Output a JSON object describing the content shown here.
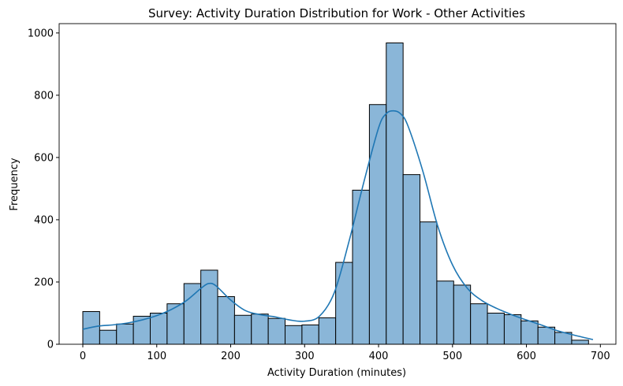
{
  "chart_data": {
    "type": "bar",
    "subtype": "histogram",
    "title": "Survey: Activity Duration Distribution for Work - Other Activities",
    "xlabel": "Activity Duration (minutes)",
    "ylabel": "Frequency",
    "xlim": [
      -32,
      721
    ],
    "ylim": [
      0,
      1030
    ],
    "xticks": [
      0,
      100,
      200,
      300,
      400,
      500,
      600,
      700
    ],
    "yticks": [
      0,
      200,
      400,
      600,
      800,
      1000
    ],
    "bin_width": 22.8,
    "bins": [
      {
        "start": 0,
        "count": 105
      },
      {
        "start": 22.8,
        "count": 45
      },
      {
        "start": 45.6,
        "count": 65
      },
      {
        "start": 68.4,
        "count": 90
      },
      {
        "start": 91.2,
        "count": 100
      },
      {
        "start": 114.0,
        "count": 130
      },
      {
        "start": 136.8,
        "count": 195
      },
      {
        "start": 159.6,
        "count": 238
      },
      {
        "start": 182.4,
        "count": 153
      },
      {
        "start": 205.2,
        "count": 93
      },
      {
        "start": 228.0,
        "count": 97
      },
      {
        "start": 250.8,
        "count": 83
      },
      {
        "start": 273.6,
        "count": 60
      },
      {
        "start": 296.4,
        "count": 62
      },
      {
        "start": 319.2,
        "count": 85
      },
      {
        "start": 342.0,
        "count": 263
      },
      {
        "start": 364.8,
        "count": 495
      },
      {
        "start": 387.6,
        "count": 770
      },
      {
        "start": 410.4,
        "count": 968
      },
      {
        "start": 433.2,
        "count": 545
      },
      {
        "start": 456.0,
        "count": 393
      },
      {
        "start": 478.8,
        "count": 203
      },
      {
        "start": 501.6,
        "count": 190
      },
      {
        "start": 524.4,
        "count": 130
      },
      {
        "start": 547.2,
        "count": 100
      },
      {
        "start": 570.0,
        "count": 95
      },
      {
        "start": 592.8,
        "count": 75
      },
      {
        "start": 615.6,
        "count": 55
      },
      {
        "start": 638.4,
        "count": 38
      },
      {
        "start": 661.2,
        "count": 13
      }
    ],
    "kde": {
      "x": [
        0,
        20,
        40,
        60,
        80,
        100,
        120,
        140,
        160,
        170,
        180,
        200,
        220,
        240,
        260,
        280,
        300,
        320,
        340,
        360,
        380,
        400,
        410,
        420,
        430,
        440,
        460,
        480,
        500,
        520,
        540,
        560,
        580,
        600,
        620,
        640,
        660,
        690
      ],
      "y": [
        48,
        58,
        62,
        68,
        78,
        92,
        112,
        140,
        180,
        195,
        188,
        142,
        108,
        95,
        88,
        78,
        74,
        90,
        165,
        330,
        520,
        695,
        740,
        750,
        740,
        700,
        555,
        380,
        255,
        180,
        140,
        115,
        95,
        78,
        62,
        45,
        32,
        15
      ]
    },
    "bar_fill": "#8ab6d8",
    "bar_edge": "#000000",
    "kde_color": "#1f77b4",
    "grid": false,
    "legend": "none"
  }
}
